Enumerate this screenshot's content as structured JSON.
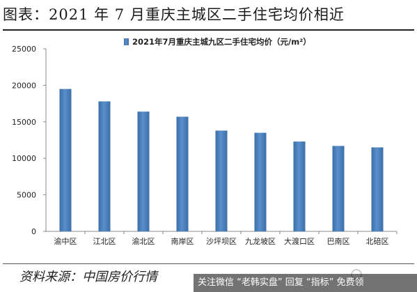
{
  "figure": {
    "title": "图表：2021 年 7 月重庆主城区二手住宅均价相近",
    "source": "资料来源：中国房价行情"
  },
  "watermark": {
    "text": "关注微信 “老韩实盘” 回复 “指标” 免费领"
  },
  "colors": {
    "bar": "#5b8fcb",
    "bar_dark": "#3a6ea8",
    "axis": "#888888",
    "text": "#222222"
  },
  "chart_data": {
    "type": "bar",
    "title": "",
    "legend": {
      "label": "2021年7月重庆主城九区二手住宅均价（元/m²）",
      "position": "top-center"
    },
    "categories": [
      "渝中区",
      "江北区",
      "渝北区",
      "南岸区",
      "沙坪坝区",
      "九龙坡区",
      "大渡口区",
      "巴南区",
      "北碚区"
    ],
    "series": [
      {
        "name": "2021年7月重庆主城九区二手住宅均价（元/m²）",
        "values": [
          19500,
          17800,
          16400,
          15700,
          13800,
          13500,
          12300,
          11700,
          11500
        ]
      }
    ],
    "xlabel": "",
    "ylabel": "",
    "ylim": [
      0,
      25000
    ],
    "yticks": [
      0,
      5000,
      10000,
      15000,
      20000,
      25000
    ],
    "grid": false
  }
}
